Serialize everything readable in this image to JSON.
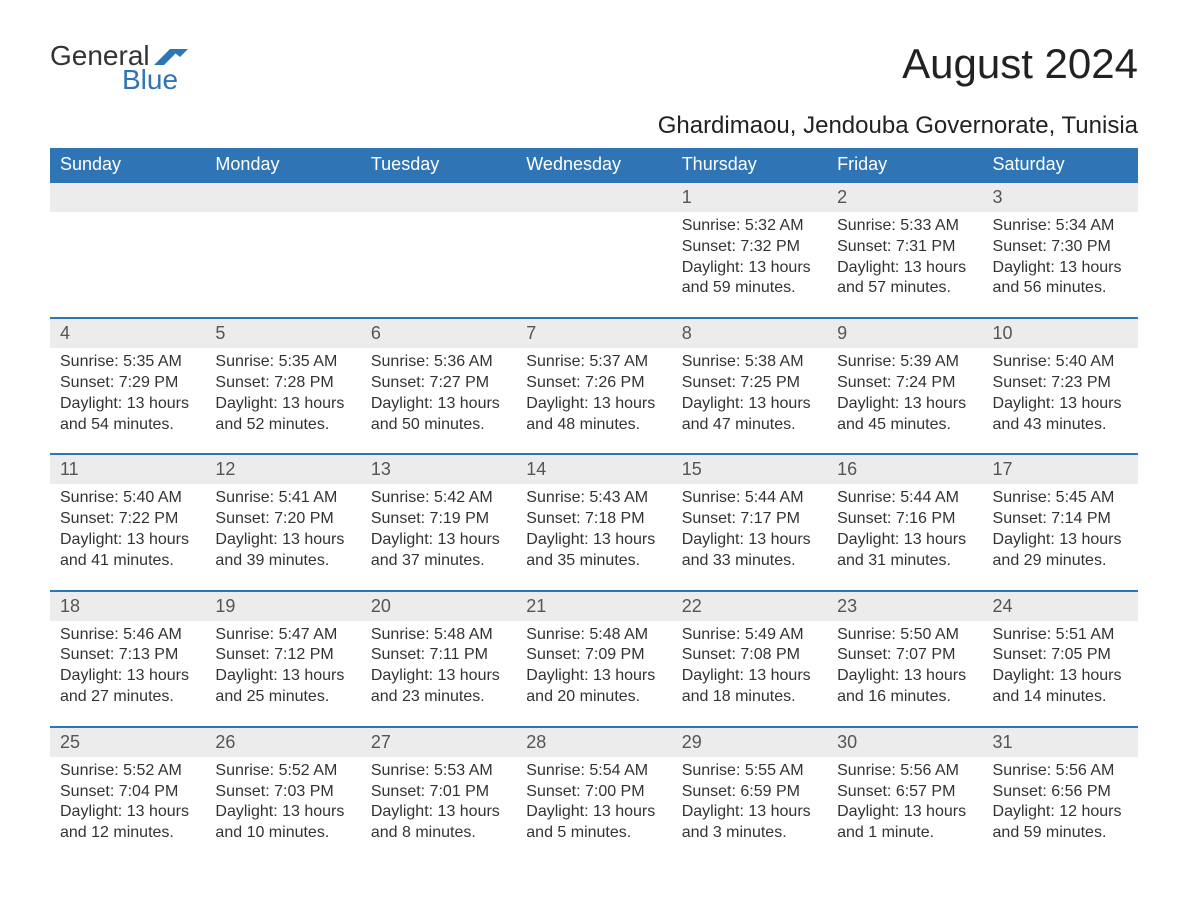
{
  "logo": {
    "word1": "General",
    "word2": "Blue"
  },
  "month_title": "August 2024",
  "location": "Ghardimaou, Jendouba Governorate, Tunisia",
  "colors": {
    "header_bg": "#2f75b5",
    "header_text": "#ffffff",
    "daynum_bg": "#ececec",
    "row_border": "#2f75b5",
    "body_text": "#333333",
    "logo_accent": "#2f75b5"
  },
  "day_headers": [
    "Sunday",
    "Monday",
    "Tuesday",
    "Wednesday",
    "Thursday",
    "Friday",
    "Saturday"
  ],
  "weeks": [
    [
      null,
      null,
      null,
      null,
      {
        "n": "1",
        "sunrise": "Sunrise: 5:32 AM",
        "sunset": "Sunset: 7:32 PM",
        "daylight": "Daylight: 13 hours and 59 minutes."
      },
      {
        "n": "2",
        "sunrise": "Sunrise: 5:33 AM",
        "sunset": "Sunset: 7:31 PM",
        "daylight": "Daylight: 13 hours and 57 minutes."
      },
      {
        "n": "3",
        "sunrise": "Sunrise: 5:34 AM",
        "sunset": "Sunset: 7:30 PM",
        "daylight": "Daylight: 13 hours and 56 minutes."
      }
    ],
    [
      {
        "n": "4",
        "sunrise": "Sunrise: 5:35 AM",
        "sunset": "Sunset: 7:29 PM",
        "daylight": "Daylight: 13 hours and 54 minutes."
      },
      {
        "n": "5",
        "sunrise": "Sunrise: 5:35 AM",
        "sunset": "Sunset: 7:28 PM",
        "daylight": "Daylight: 13 hours and 52 minutes."
      },
      {
        "n": "6",
        "sunrise": "Sunrise: 5:36 AM",
        "sunset": "Sunset: 7:27 PM",
        "daylight": "Daylight: 13 hours and 50 minutes."
      },
      {
        "n": "7",
        "sunrise": "Sunrise: 5:37 AM",
        "sunset": "Sunset: 7:26 PM",
        "daylight": "Daylight: 13 hours and 48 minutes."
      },
      {
        "n": "8",
        "sunrise": "Sunrise: 5:38 AM",
        "sunset": "Sunset: 7:25 PM",
        "daylight": "Daylight: 13 hours and 47 minutes."
      },
      {
        "n": "9",
        "sunrise": "Sunrise: 5:39 AM",
        "sunset": "Sunset: 7:24 PM",
        "daylight": "Daylight: 13 hours and 45 minutes."
      },
      {
        "n": "10",
        "sunrise": "Sunrise: 5:40 AM",
        "sunset": "Sunset: 7:23 PM",
        "daylight": "Daylight: 13 hours and 43 minutes."
      }
    ],
    [
      {
        "n": "11",
        "sunrise": "Sunrise: 5:40 AM",
        "sunset": "Sunset: 7:22 PM",
        "daylight": "Daylight: 13 hours and 41 minutes."
      },
      {
        "n": "12",
        "sunrise": "Sunrise: 5:41 AM",
        "sunset": "Sunset: 7:20 PM",
        "daylight": "Daylight: 13 hours and 39 minutes."
      },
      {
        "n": "13",
        "sunrise": "Sunrise: 5:42 AM",
        "sunset": "Sunset: 7:19 PM",
        "daylight": "Daylight: 13 hours and 37 minutes."
      },
      {
        "n": "14",
        "sunrise": "Sunrise: 5:43 AM",
        "sunset": "Sunset: 7:18 PM",
        "daylight": "Daylight: 13 hours and 35 minutes."
      },
      {
        "n": "15",
        "sunrise": "Sunrise: 5:44 AM",
        "sunset": "Sunset: 7:17 PM",
        "daylight": "Daylight: 13 hours and 33 minutes."
      },
      {
        "n": "16",
        "sunrise": "Sunrise: 5:44 AM",
        "sunset": "Sunset: 7:16 PM",
        "daylight": "Daylight: 13 hours and 31 minutes."
      },
      {
        "n": "17",
        "sunrise": "Sunrise: 5:45 AM",
        "sunset": "Sunset: 7:14 PM",
        "daylight": "Daylight: 13 hours and 29 minutes."
      }
    ],
    [
      {
        "n": "18",
        "sunrise": "Sunrise: 5:46 AM",
        "sunset": "Sunset: 7:13 PM",
        "daylight": "Daylight: 13 hours and 27 minutes."
      },
      {
        "n": "19",
        "sunrise": "Sunrise: 5:47 AM",
        "sunset": "Sunset: 7:12 PM",
        "daylight": "Daylight: 13 hours and 25 minutes."
      },
      {
        "n": "20",
        "sunrise": "Sunrise: 5:48 AM",
        "sunset": "Sunset: 7:11 PM",
        "daylight": "Daylight: 13 hours and 23 minutes."
      },
      {
        "n": "21",
        "sunrise": "Sunrise: 5:48 AM",
        "sunset": "Sunset: 7:09 PM",
        "daylight": "Daylight: 13 hours and 20 minutes."
      },
      {
        "n": "22",
        "sunrise": "Sunrise: 5:49 AM",
        "sunset": "Sunset: 7:08 PM",
        "daylight": "Daylight: 13 hours and 18 minutes."
      },
      {
        "n": "23",
        "sunrise": "Sunrise: 5:50 AM",
        "sunset": "Sunset: 7:07 PM",
        "daylight": "Daylight: 13 hours and 16 minutes."
      },
      {
        "n": "24",
        "sunrise": "Sunrise: 5:51 AM",
        "sunset": "Sunset: 7:05 PM",
        "daylight": "Daylight: 13 hours and 14 minutes."
      }
    ],
    [
      {
        "n": "25",
        "sunrise": "Sunrise: 5:52 AM",
        "sunset": "Sunset: 7:04 PM",
        "daylight": "Daylight: 13 hours and 12 minutes."
      },
      {
        "n": "26",
        "sunrise": "Sunrise: 5:52 AM",
        "sunset": "Sunset: 7:03 PM",
        "daylight": "Daylight: 13 hours and 10 minutes."
      },
      {
        "n": "27",
        "sunrise": "Sunrise: 5:53 AM",
        "sunset": "Sunset: 7:01 PM",
        "daylight": "Daylight: 13 hours and 8 minutes."
      },
      {
        "n": "28",
        "sunrise": "Sunrise: 5:54 AM",
        "sunset": "Sunset: 7:00 PM",
        "daylight": "Daylight: 13 hours and 5 minutes."
      },
      {
        "n": "29",
        "sunrise": "Sunrise: 5:55 AM",
        "sunset": "Sunset: 6:59 PM",
        "daylight": "Daylight: 13 hours and 3 minutes."
      },
      {
        "n": "30",
        "sunrise": "Sunrise: 5:56 AM",
        "sunset": "Sunset: 6:57 PM",
        "daylight": "Daylight: 13 hours and 1 minute."
      },
      {
        "n": "31",
        "sunrise": "Sunrise: 5:56 AM",
        "sunset": "Sunset: 6:56 PM",
        "daylight": "Daylight: 12 hours and 59 minutes."
      }
    ]
  ]
}
